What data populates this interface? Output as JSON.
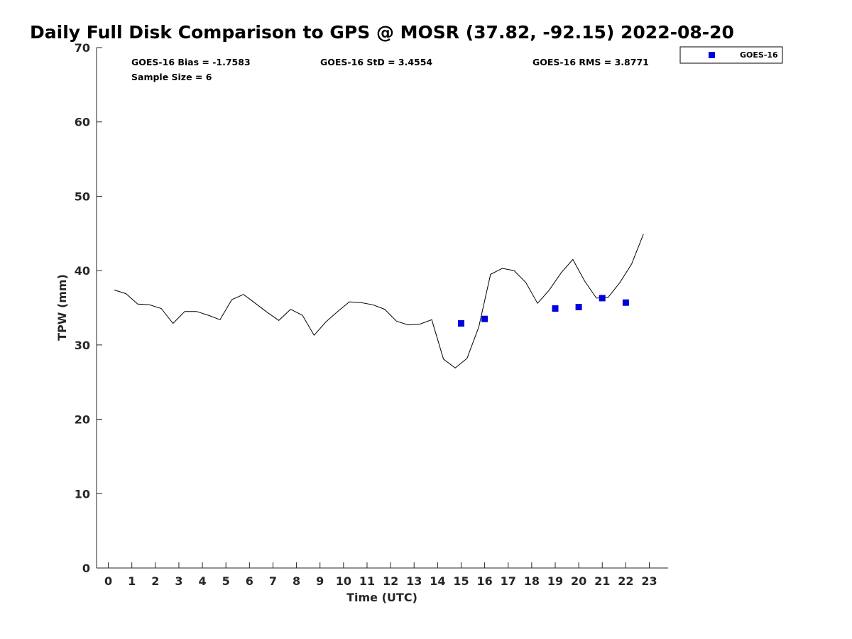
{
  "chart_data": {
    "type": "line",
    "title": "Daily Full Disk Comparison to GPS @ MOSR (37.82, -92.15) 2022-08-20",
    "xlabel": "Time (UTC)",
    "ylabel": "TPW (mm)",
    "xlim": [
      -0.5,
      23.8
    ],
    "ylim": [
      0,
      70
    ],
    "x_ticks": [
      0,
      1,
      2,
      3,
      4,
      5,
      6,
      7,
      8,
      9,
      10,
      11,
      12,
      13,
      14,
      15,
      16,
      17,
      18,
      19,
      20,
      21,
      22,
      23
    ],
    "y_ticks": [
      0,
      10,
      20,
      30,
      40,
      50,
      60,
      70
    ],
    "grid": false,
    "legend_position": "top-right",
    "stats": {
      "bias": "GOES-16 Bias = -1.7583",
      "std": "GOES-16 StD = 3.4554",
      "rms": "GOES-16 RMS = 3.8771",
      "sample_size": "Sample Size = 6"
    },
    "series": [
      {
        "kind": "line",
        "color": "#000000",
        "x": [
          0.25,
          0.75,
          1.25,
          1.75,
          2.25,
          2.75,
          3.25,
          3.75,
          4.25,
          4.75,
          5.25,
          5.75,
          6.25,
          6.75,
          7.25,
          7.75,
          8.25,
          8.75,
          9.25,
          9.75,
          10.25,
          10.75,
          11.25,
          11.75,
          12.25,
          12.75,
          13.25,
          13.75,
          14.25,
          14.75,
          15.25,
          15.75,
          16.25,
          16.75,
          17.25,
          17.75,
          18.25,
          18.75,
          19.25,
          19.75,
          20.25,
          20.75,
          21.25,
          21.75,
          22.25,
          22.75
        ],
        "values": [
          37.4,
          36.9,
          35.5,
          35.4,
          34.9,
          32.9,
          34.5,
          34.5,
          34.0,
          33.4,
          36.1,
          36.8,
          35.6,
          34.4,
          33.3,
          34.8,
          34.0,
          31.3,
          33.1,
          34.5,
          35.8,
          35.7,
          35.4,
          34.8,
          33.2,
          32.7,
          32.8,
          33.4,
          28.1,
          26.9,
          28.2,
          32.4,
          39.5,
          40.3,
          40.0,
          38.4,
          35.6,
          37.4,
          39.7,
          41.5,
          38.6,
          36.3,
          36.4,
          38.4,
          40.9,
          44.9
        ]
      },
      {
        "name": "GOES-16",
        "kind": "scatter",
        "color": "#0000dd",
        "x": [
          15,
          16,
          19,
          20,
          21,
          22
        ],
        "values": [
          32.9,
          33.5,
          34.9,
          35.1,
          36.3,
          35.7
        ]
      }
    ]
  }
}
